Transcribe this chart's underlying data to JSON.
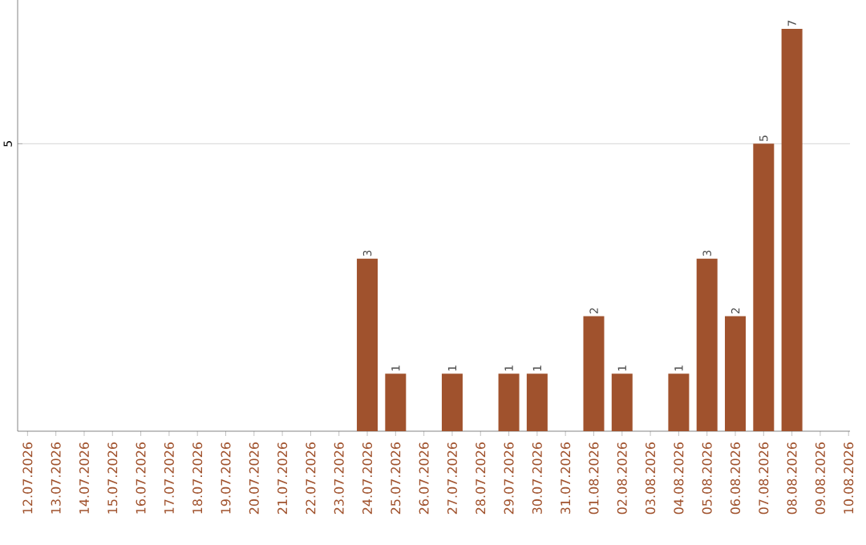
{
  "chart_data": {
    "type": "bar",
    "categories": [
      "12.07.2026",
      "13.07.2026",
      "14.07.2026",
      "15.07.2026",
      "16.07.2026",
      "17.07.2026",
      "18.07.2026",
      "19.07.2026",
      "20.07.2026",
      "21.07.2026",
      "22.07.2026",
      "23.07.2026",
      "24.07.2026",
      "25.07.2026",
      "26.07.2026",
      "27.07.2026",
      "28.07.2026",
      "29.07.2026",
      "30.07.2026",
      "31.07.2026",
      "01.08.2026",
      "02.08.2026",
      "03.08.2026",
      "04.08.2026",
      "05.08.2026",
      "06.08.2026",
      "07.08.2026",
      "08.08.2026",
      "09.08.2026",
      "10.08.2026"
    ],
    "values": [
      null,
      null,
      null,
      null,
      null,
      null,
      null,
      null,
      null,
      null,
      null,
      null,
      3,
      1,
      null,
      1,
      null,
      1,
      1,
      null,
      2,
      1,
      null,
      1,
      3,
      2,
      5,
      7,
      null,
      null
    ],
    "value_labels": [
      null,
      null,
      null,
      null,
      null,
      null,
      null,
      null,
      null,
      null,
      null,
      null,
      "3",
      "1",
      null,
      "1",
      null,
      "1",
      "1",
      null,
      "2",
      "1",
      null,
      "1",
      "3",
      "2",
      "5",
      "7",
      null,
      null
    ],
    "color": "#a0522d",
    "ylim": [
      0,
      7.5
    ],
    "yticks": [
      5
    ],
    "grid": "y"
  }
}
